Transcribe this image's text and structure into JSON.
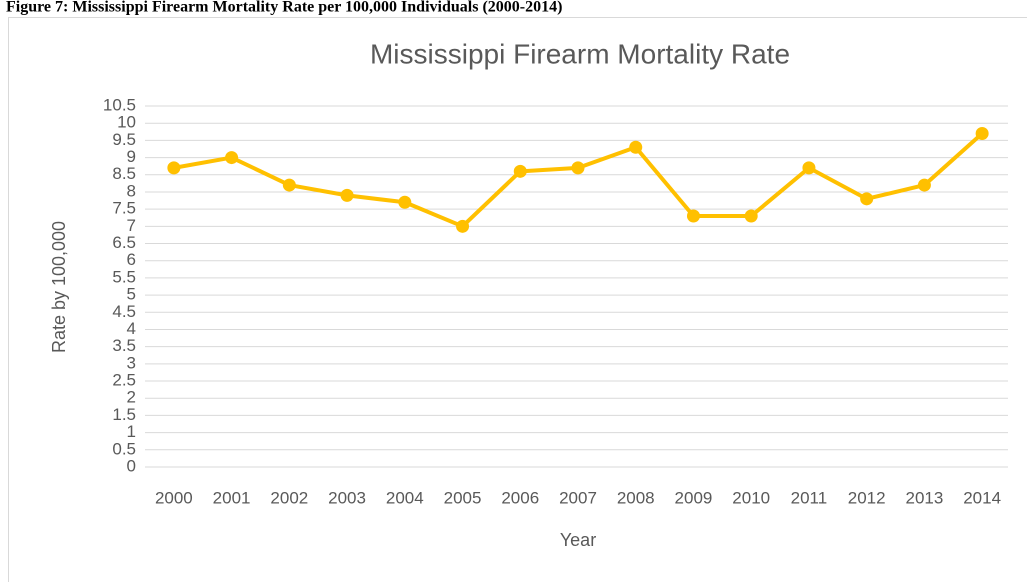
{
  "chart_data": {
    "type": "line",
    "caption": "Figure 7: Mississippi Firearm Mortality Rate per 100,000 Individuals (2000-2014)",
    "title": "Mississippi Firearm Mortality Rate",
    "x_label": "Year",
    "y_label": "Rate by 100,000",
    "categories": [
      "2000",
      "2001",
      "2002",
      "2003",
      "2004",
      "2005",
      "2006",
      "2007",
      "2008",
      "2009",
      "2010",
      "2011",
      "2012",
      "2013",
      "2014"
    ],
    "values": [
      8.7,
      9.0,
      8.2,
      7.9,
      7.7,
      7.0,
      8.6,
      8.7,
      9.3,
      7.3,
      7.3,
      8.7,
      7.8,
      8.2,
      9.7
    ],
    "color": "#ffc000",
    "ylim": [
      0,
      10.5
    ],
    "yticks": [
      0,
      0.5,
      1,
      1.5,
      2,
      2.5,
      3,
      3.5,
      4,
      4.5,
      5,
      5.5,
      6,
      6.5,
      7,
      7.5,
      8,
      8.5,
      9,
      9.5,
      10,
      10.5
    ],
    "grid": true
  }
}
